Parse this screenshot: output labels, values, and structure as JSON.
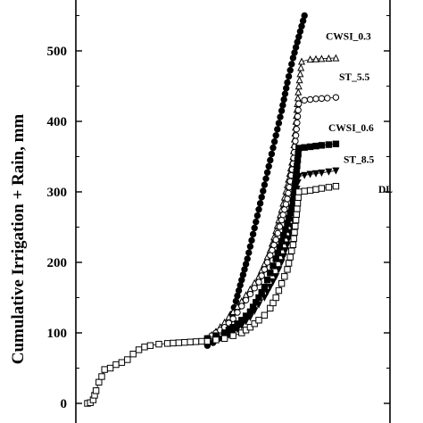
{
  "chart_data": {
    "type": "line",
    "ylabel": "Cumulative Irrigation + Rain, mm",
    "xlabel": "",
    "title": "",
    "ylim": [
      -30,
      590
    ],
    "yticks": [
      0,
      100,
      200,
      300,
      400,
      500
    ],
    "grid": false,
    "series": [
      {
        "marker": "filled-circle",
        "points": [
          [
            0.42,
            82
          ],
          [
            0.44,
            86
          ],
          [
            0.46,
            92
          ],
          [
            0.48,
            100
          ],
          [
            0.5,
            118
          ],
          [
            0.52,
            145
          ],
          [
            0.54,
            175
          ],
          [
            0.56,
            205
          ],
          [
            0.58,
            240
          ],
          [
            0.6,
            275
          ],
          [
            0.62,
            310
          ],
          [
            0.64,
            345
          ],
          [
            0.66,
            380
          ],
          [
            0.68,
            415
          ],
          [
            0.7,
            455
          ],
          [
            0.72,
            490
          ],
          [
            0.74,
            520
          ],
          [
            0.76,
            550
          ]
        ]
      },
      {
        "name": "CWSI_0.3",
        "marker": "open-triangle",
        "points": [
          [
            0.42,
            92
          ],
          [
            0.45,
            102
          ],
          [
            0.48,
            115
          ],
          [
            0.51,
            130
          ],
          [
            0.54,
            145
          ],
          [
            0.57,
            162
          ],
          [
            0.6,
            180
          ],
          [
            0.62,
            198
          ],
          [
            0.64,
            218
          ],
          [
            0.66,
            245
          ],
          [
            0.68,
            275
          ],
          [
            0.7,
            310
          ],
          [
            0.72,
            350
          ],
          [
            0.73,
            400
          ],
          [
            0.74,
            450
          ],
          [
            0.75,
            485
          ],
          [
            0.78,
            488
          ],
          [
            0.82,
            489
          ],
          [
            0.87,
            490
          ]
        ]
      },
      {
        "name": "ST_5.5",
        "marker": "open-circle",
        "points": [
          [
            0.42,
            92
          ],
          [
            0.45,
            100
          ],
          [
            0.48,
            108
          ],
          [
            0.51,
            120
          ],
          [
            0.54,
            138
          ],
          [
            0.57,
            155
          ],
          [
            0.6,
            172
          ],
          [
            0.62,
            190
          ],
          [
            0.64,
            210
          ],
          [
            0.66,
            232
          ],
          [
            0.68,
            260
          ],
          [
            0.7,
            290
          ],
          [
            0.72,
            340
          ],
          [
            0.73,
            380
          ],
          [
            0.74,
            425
          ],
          [
            0.76,
            430
          ],
          [
            0.8,
            432
          ],
          [
            0.84,
            433
          ],
          [
            0.87,
            434
          ]
        ]
      },
      {
        "name": "CWSI_0.6",
        "marker": "filled-square",
        "points": [
          [
            0.42,
            92
          ],
          [
            0.45,
            96
          ],
          [
            0.48,
            100
          ],
          [
            0.51,
            108
          ],
          [
            0.54,
            118
          ],
          [
            0.57,
            130
          ],
          [
            0.6,
            150
          ],
          [
            0.62,
            165
          ],
          [
            0.64,
            185
          ],
          [
            0.66,
            205
          ],
          [
            0.68,
            230
          ],
          [
            0.7,
            255
          ],
          [
            0.72,
            285
          ],
          [
            0.73,
            320
          ],
          [
            0.74,
            362
          ],
          [
            0.78,
            364
          ],
          [
            0.82,
            366
          ],
          [
            0.87,
            368
          ]
        ]
      },
      {
        "name": "ST_8.5",
        "marker": "filled-triangle",
        "points": [
          [
            0.42,
            90
          ],
          [
            0.45,
            92
          ],
          [
            0.48,
            94
          ],
          [
            0.51,
            100
          ],
          [
            0.54,
            110
          ],
          [
            0.57,
            122
          ],
          [
            0.6,
            140
          ],
          [
            0.62,
            150
          ],
          [
            0.64,
            165
          ],
          [
            0.66,
            180
          ],
          [
            0.68,
            200
          ],
          [
            0.7,
            225
          ],
          [
            0.72,
            260
          ],
          [
            0.73,
            295
          ],
          [
            0.74,
            322
          ],
          [
            0.78,
            325
          ],
          [
            0.82,
            327
          ],
          [
            0.87,
            330
          ]
        ]
      },
      {
        "name": "DL",
        "marker": "open-square",
        "points": [
          [
            0.42,
            88
          ],
          [
            0.45,
            90
          ],
          [
            0.48,
            92
          ],
          [
            0.51,
            96
          ],
          [
            0.54,
            100
          ],
          [
            0.57,
            108
          ],
          [
            0.6,
            118
          ],
          [
            0.62,
            125
          ],
          [
            0.64,
            135
          ],
          [
            0.66,
            150
          ],
          [
            0.68,
            170
          ],
          [
            0.7,
            190
          ],
          [
            0.72,
            225
          ],
          [
            0.73,
            260
          ],
          [
            0.74,
            300
          ],
          [
            0.78,
            302
          ],
          [
            0.82,
            305
          ],
          [
            0.87,
            308
          ]
        ]
      },
      {
        "marker": "open-square",
        "points": [
          [
            0.0,
            0
          ],
          [
            0.01,
            1
          ],
          [
            0.02,
            5
          ],
          [
            0.03,
            18
          ],
          [
            0.04,
            30
          ],
          [
            0.05,
            38
          ],
          [
            0.06,
            48
          ],
          [
            0.08,
            50
          ],
          [
            0.1,
            55
          ],
          [
            0.12,
            58
          ],
          [
            0.14,
            62
          ],
          [
            0.16,
            70
          ],
          [
            0.18,
            76
          ],
          [
            0.2,
            80
          ],
          [
            0.22,
            82
          ],
          [
            0.25,
            84
          ],
          [
            0.28,
            85
          ],
          [
            0.32,
            86
          ],
          [
            0.36,
            87
          ],
          [
            0.4,
            88
          ],
          [
            0.42,
            88
          ]
        ]
      }
    ]
  }
}
